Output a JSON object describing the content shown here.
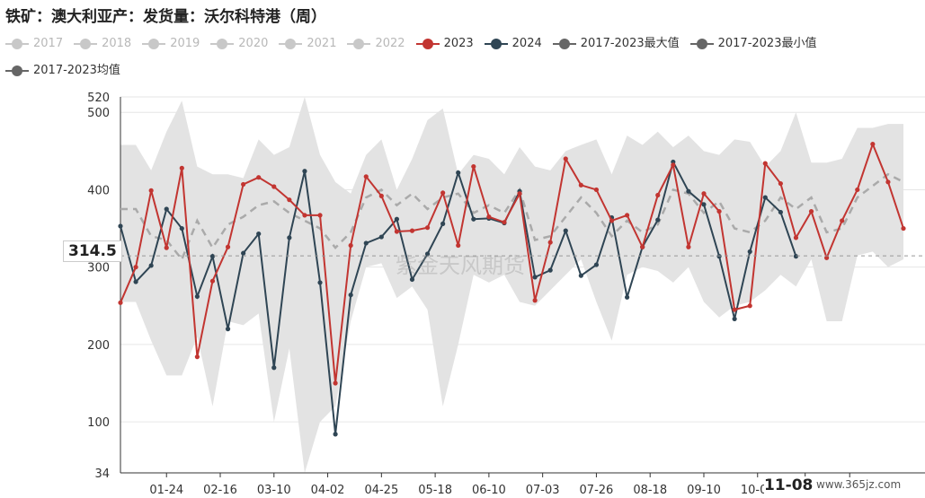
{
  "title": "铁矿：澳大利亚产：发货量：沃尔科特港（周）",
  "watermark": "紫金天风期货",
  "source_mark": "www.365jz.com",
  "cursor": {
    "x_label": "11-08",
    "y_label": "314.5"
  },
  "legend": [
    {
      "name": "2017",
      "color": "#c8c8c8"
    },
    {
      "name": "2018",
      "color": "#c8c8c8"
    },
    {
      "name": "2019",
      "color": "#c8c8c8"
    },
    {
      "name": "2020",
      "color": "#c8c8c8"
    },
    {
      "name": "2021",
      "color": "#c8c8c8"
    },
    {
      "name": "2022",
      "color": "#c8c8c8"
    },
    {
      "name": "2023",
      "color": "#c23531"
    },
    {
      "name": "2024",
      "color": "#2f4554"
    },
    {
      "name": "2017-2023最大值",
      "color": "#666666"
    },
    {
      "name": "2017-2023最小值",
      "color": "#666666"
    },
    {
      "name": "2017-2023均值",
      "color": "#666666"
    }
  ],
  "chart_data": {
    "type": "line",
    "y_ticks": [
      34,
      100,
      200,
      300,
      400,
      500,
      520
    ],
    "ylim": [
      34,
      520
    ],
    "x_tick_labels": [
      "01-24",
      "02-16",
      "03-10",
      "04-02",
      "04-25",
      "05-18",
      "06-10",
      "07-03",
      "07-26",
      "08-18",
      "09-10",
      "10-03",
      "1",
      "11-08"
    ],
    "week_range": [
      1,
      52
    ],
    "series": [
      {
        "name": "2023",
        "color": "#c23531",
        "values": [
          254,
          300,
          399,
          325,
          428,
          184,
          282,
          326,
          407,
          416,
          404,
          387,
          367,
          367,
          150,
          328,
          417,
          392,
          346,
          347,
          351,
          396,
          328,
          430,
          365,
          358,
          395,
          257,
          332,
          440,
          406,
          400,
          360,
          367,
          326,
          393,
          432,
          326,
          395,
          372,
          245,
          250,
          434,
          408,
          338,
          372,
          312,
          360,
          400,
          459,
          410,
          350
        ]
      },
      {
        "name": "2024",
        "color": "#2f4554",
        "values": [
          353,
          281,
          302,
          375,
          350,
          262,
          314,
          220,
          318,
          343,
          170,
          338,
          424,
          280,
          84,
          264,
          331,
          339,
          362,
          284,
          317,
          356,
          422,
          362,
          363,
          357,
          398,
          287,
          296,
          347,
          289,
          303,
          364,
          261,
          326,
          361,
          436,
          398,
          381,
          314,
          233,
          320,
          390,
          371,
          314
        ]
      },
      {
        "name": "2017-2023最大值",
        "color": "#e3e3e3",
        "values": [
          458,
          458,
          425,
          475,
          515,
          430,
          420,
          420,
          415,
          465,
          445,
          455,
          520,
          445,
          410,
          395,
          445,
          465,
          400,
          440,
          490,
          505,
          420,
          445,
          440,
          420,
          455,
          430,
          425,
          450,
          458,
          465,
          420,
          470,
          458,
          475,
          455,
          470,
          450,
          445,
          465,
          462,
          430,
          450,
          500,
          435,
          435,
          440,
          480,
          480,
          485,
          485
        ]
      },
      {
        "name": "2017-2023最小值",
        "color": "#e3e3e3",
        "values": [
          255,
          255,
          205,
          160,
          160,
          210,
          120,
          230,
          225,
          240,
          100,
          195,
          30,
          100,
          120,
          230,
          300,
          305,
          260,
          275,
          245,
          120,
          200,
          290,
          280,
          290,
          255,
          250,
          270,
          290,
          310,
          255,
          205,
          290,
          300,
          295,
          280,
          300,
          255,
          235,
          250,
          255,
          270,
          290,
          275,
          310,
          230,
          230,
          315,
          320,
          300,
          310
        ]
      },
      {
        "name": "2017-2023均值",
        "color": "#aaaaaa",
        "values": [
          375,
          375,
          340,
          335,
          310,
          360,
          325,
          355,
          365,
          380,
          385,
          370,
          360,
          350,
          325,
          345,
          390,
          400,
          380,
          395,
          375,
          390,
          395,
          370,
          380,
          370,
          400,
          335,
          340,
          365,
          390,
          370,
          340,
          360,
          345,
          355,
          400,
          395,
          370,
          385,
          350,
          345,
          360,
          390,
          375,
          390,
          345,
          350,
          390,
          405,
          420,
          410
        ]
      }
    ]
  }
}
